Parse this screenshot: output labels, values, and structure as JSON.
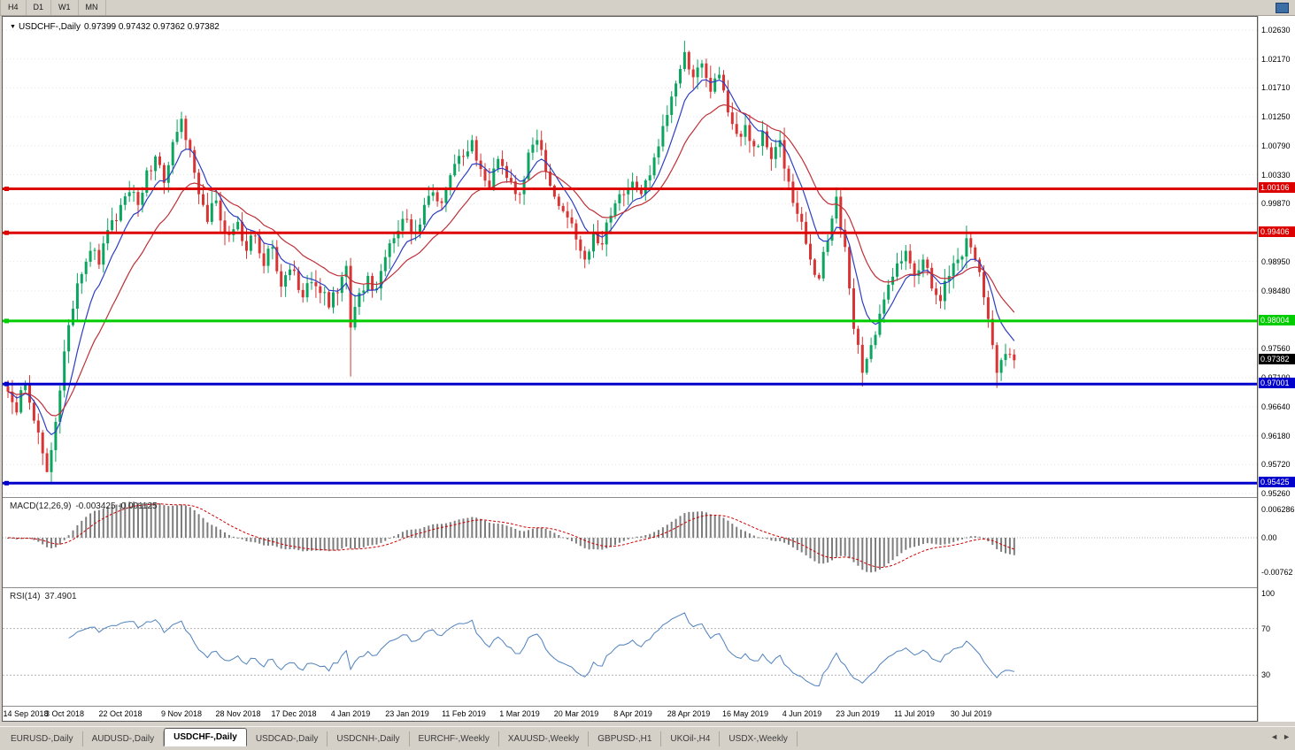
{
  "toolbar": {
    "timeframe_buttons": [
      "H4",
      "D1",
      "W1",
      "MN"
    ]
  },
  "chart": {
    "header": {
      "symbol": "USDCHF-,Daily",
      "ohlc": "0.97399 0.97432 0.97362 0.97382"
    },
    "price_axis": {
      "ticks": [
        "1.02630",
        "1.02170",
        "1.01710",
        "1.01250",
        "1.00790",
        "1.00330",
        "0.99870",
        "0.98950",
        "0.98480",
        "0.97560",
        "0.97100",
        "0.96640",
        "0.96180",
        "0.95720",
        "0.95260"
      ],
      "badges": [
        {
          "text": "1.00106",
          "price": 1.00106,
          "bg": "#dd0000",
          "fg": "#ffffff",
          "name": "resistance-price-badge-1"
        },
        {
          "text": "0.99406",
          "price": 0.99406,
          "bg": "#dd0000",
          "fg": "#ffffff",
          "name": "resistance-price-badge-2"
        },
        {
          "text": "0.98004",
          "price": 0.98004,
          "bg": "#00cc00",
          "fg": "#ffffff",
          "name": "support-price-badge-green"
        },
        {
          "text": "0.97382",
          "price": 0.97382,
          "bg": "#000000",
          "fg": "#ffffff",
          "name": "current-price-badge"
        },
        {
          "text": "0.97001",
          "price": 0.97001,
          "bg": "#0000cc",
          "fg": "#ffffff",
          "name": "support-price-badge-blue-1"
        },
        {
          "text": "0.95425",
          "price": 0.95425,
          "bg": "#0000cc",
          "fg": "#ffffff",
          "name": "support-price-badge-blue-2"
        }
      ]
    },
    "hlines": [
      {
        "price": 1.00106,
        "color": "#dd0000",
        "width": 3
      },
      {
        "price": 0.99406,
        "color": "#dd0000",
        "width": 3
      },
      {
        "price": 0.98004,
        "color": "#00cc00",
        "width": 3
      },
      {
        "price": 0.97001,
        "color": "#0000cc",
        "width": 3
      },
      {
        "price": 0.95425,
        "color": "#0000cc",
        "width": 3
      }
    ],
    "time_axis": [
      {
        "label": "14 Sep 2018",
        "bar": 0
      },
      {
        "label": "3 Oct 2018",
        "bar": 13
      },
      {
        "label": "22 Oct 2018",
        "bar": 26
      },
      {
        "label": "9 Nov 2018",
        "bar": 40
      },
      {
        "label": "28 Nov 2018",
        "bar": 53
      },
      {
        "label": "17 Dec 2018",
        "bar": 66
      },
      {
        "label": "4 Jan 2019",
        "bar": 79
      },
      {
        "label": "23 Jan 2019",
        "bar": 92
      },
      {
        "label": "11 Feb 2019",
        "bar": 105
      },
      {
        "label": "1 Mar 2019",
        "bar": 118
      },
      {
        "label": "20 Mar 2019",
        "bar": 131
      },
      {
        "label": "8 Apr 2019",
        "bar": 144
      },
      {
        "label": "28 Apr 2019",
        "bar": 157
      },
      {
        "label": "16 May 2019",
        "bar": 170
      },
      {
        "label": "4 Jun 2019",
        "bar": 183
      },
      {
        "label": "23 Jun 2019",
        "bar": 196
      },
      {
        "label": "11 Jul 2019",
        "bar": 209
      },
      {
        "label": "30 Jul 2019",
        "bar": 222
      }
    ],
    "colors": {
      "up": "#0ba55f",
      "down": "#d83434",
      "ma_fast": "#2c3ec4",
      "ma_slow": "#c03038",
      "grid": "#e2e2e2",
      "macd_hist": "#7d7d7d",
      "macd_signal": "#cc0000",
      "rsi_line": "#4f81bd"
    }
  },
  "chart_data": {
    "type": "candlestick-ohlc",
    "symbol": "USDCHF",
    "timeframe": "Daily",
    "n_bars": 233,
    "price_range": [
      0.9526,
      1.0263
    ],
    "close_anchors": [
      [
        0,
        0.9688
      ],
      [
        2,
        0.9655
      ],
      [
        4,
        0.97
      ],
      [
        6,
        0.9642
      ],
      [
        8,
        0.959
      ],
      [
        9,
        0.956
      ],
      [
        11,
        0.964
      ],
      [
        13,
        0.9752
      ],
      [
        15,
        0.982
      ],
      [
        17,
        0.9875
      ],
      [
        19,
        0.9912
      ],
      [
        21,
        0.989
      ],
      [
        23,
        0.9945
      ],
      [
        25,
        0.996
      ],
      [
        26,
        0.9985
      ],
      [
        28,
        1.0005
      ],
      [
        30,
        0.9985
      ],
      [
        32,
        1.004
      ],
      [
        34,
        1.0062
      ],
      [
        36,
        1.002
      ],
      [
        38,
        1.0085
      ],
      [
        40,
        1.0122
      ],
      [
        42,
        1.0072
      ],
      [
        44,
        1.0002
      ],
      [
        46,
        0.9958
      ],
      [
        48,
        0.9992
      ],
      [
        50,
        0.994
      ],
      [
        53,
        0.9958
      ],
      [
        55,
        0.9912
      ],
      [
        57,
        0.9935
      ],
      [
        59,
        0.9888
      ],
      [
        61,
        0.9918
      ],
      [
        63,
        0.9855
      ],
      [
        66,
        0.988
      ],
      [
        68,
        0.9838
      ],
      [
        70,
        0.9862
      ],
      [
        72,
        0.9845
      ],
      [
        74,
        0.9822
      ],
      [
        76,
        0.9845
      ],
      [
        78,
        0.9888
      ],
      [
        79,
        0.979
      ],
      [
        81,
        0.9845
      ],
      [
        83,
        0.9872
      ],
      [
        85,
        0.9852
      ],
      [
        87,
        0.9902
      ],
      [
        89,
        0.9932
      ],
      [
        92,
        0.9962
      ],
      [
        94,
        0.9942
      ],
      [
        96,
        0.9985
      ],
      [
        98,
        1.0005
      ],
      [
        100,
        0.9988
      ],
      [
        102,
        1.0032
      ],
      [
        105,
        1.0062
      ],
      [
        107,
        1.0088
      ],
      [
        109,
        1.0042
      ],
      [
        111,
        1.0012
      ],
      [
        113,
        1.0058
      ],
      [
        115,
        1.0028
      ],
      [
        118,
        1.0002
      ],
      [
        120,
        1.0068
      ],
      [
        122,
        1.0088
      ],
      [
        124,
        1.0038
      ],
      [
        126,
        0.9998
      ],
      [
        129,
        0.9965
      ],
      [
        131,
        0.993
      ],
      [
        133,
        0.9898
      ],
      [
        135,
        0.9942
      ],
      [
        137,
        0.9922
      ],
      [
        139,
        0.9968
      ],
      [
        141,
        1.0002
      ],
      [
        144,
        1.0022
      ],
      [
        146,
        1.0002
      ],
      [
        148,
        1.0032
      ],
      [
        150,
        1.0078
      ],
      [
        152,
        1.0128
      ],
      [
        154,
        1.0178
      ],
      [
        156,
        1.0228
      ],
      [
        158,
        1.0188
      ],
      [
        160,
        1.021
      ],
      [
        162,
        1.0165
      ],
      [
        164,
        1.0192
      ],
      [
        166,
        1.0132
      ],
      [
        168,
        1.0098
      ],
      [
        170,
        1.0112
      ],
      [
        172,
        1.0078
      ],
      [
        174,
        1.0102
      ],
      [
        176,
        1.0058
      ],
      [
        178,
        1.0088
      ],
      [
        180,
        1.0022
      ],
      [
        183,
        0.9958
      ],
      [
        185,
        0.9898
      ],
      [
        187,
        0.9868
      ],
      [
        189,
        0.9928
      ],
      [
        191,
        0.9998
      ],
      [
        193,
        0.9918
      ],
      [
        195,
        0.9788
      ],
      [
        197,
        0.9718
      ],
      [
        199,
        0.9762
      ],
      [
        201,
        0.9812
      ],
      [
        203,
        0.9858
      ],
      [
        205,
        0.9892
      ],
      [
        207,
        0.9912
      ],
      [
        209,
        0.9872
      ],
      [
        211,
        0.9898
      ],
      [
        213,
        0.9852
      ],
      [
        215,
        0.9832
      ],
      [
        217,
        0.9872
      ],
      [
        219,
        0.9898
      ],
      [
        221,
        0.9932
      ],
      [
        223,
        0.9898
      ],
      [
        225,
        0.9838
      ],
      [
        227,
        0.9762
      ],
      [
        228,
        0.9718
      ],
      [
        230,
        0.9748
      ],
      [
        232,
        0.9738
      ]
    ],
    "wick_overrides": [
      {
        "bar": 9,
        "low": 0.956
      },
      {
        "bar": 40,
        "high": 1.0133
      },
      {
        "bar": 79,
        "low": 0.9712
      },
      {
        "bar": 156,
        "high": 1.0246
      },
      {
        "bar": 197,
        "low": 0.9696
      },
      {
        "bar": 221,
        "high": 0.9952
      },
      {
        "bar": 228,
        "low": 0.9694
      }
    ]
  },
  "macd": {
    "title": "MACD(12,26,9)",
    "values": "-0.003425 -0.001125",
    "axis_labels": [
      "0.006286",
      "0.00",
      "-0.00762"
    ],
    "axis_values": [
      0.006286,
      0,
      -0.00762
    ]
  },
  "rsi": {
    "title": "RSI(14)",
    "value": "37.4901",
    "axis_labels": [
      "100",
      "70",
      "30"
    ],
    "axis_values": [
      100,
      70,
      30
    ],
    "level_lines": [
      70,
      30
    ]
  },
  "tabs": {
    "items": [
      {
        "label": "EURUSD-,Daily",
        "active": false
      },
      {
        "label": "AUDUSD-,Daily",
        "active": false
      },
      {
        "label": "USDCHF-,Daily",
        "active": true
      },
      {
        "label": "USDCAD-,Daily",
        "active": false
      },
      {
        "label": "USDCNH-,Daily",
        "active": false
      },
      {
        "label": "EURCHF-,Weekly",
        "active": false
      },
      {
        "label": "XAUUSD-,Weekly",
        "active": false
      },
      {
        "label": "GBPUSD-,H1",
        "active": false
      },
      {
        "label": "UKOil-,H4",
        "active": false
      },
      {
        "label": "USDX-,Weekly",
        "active": false
      }
    ],
    "scroll_left": "◄",
    "scroll_right": "►"
  },
  "header_icons": {
    "dropdown": "▼"
  }
}
